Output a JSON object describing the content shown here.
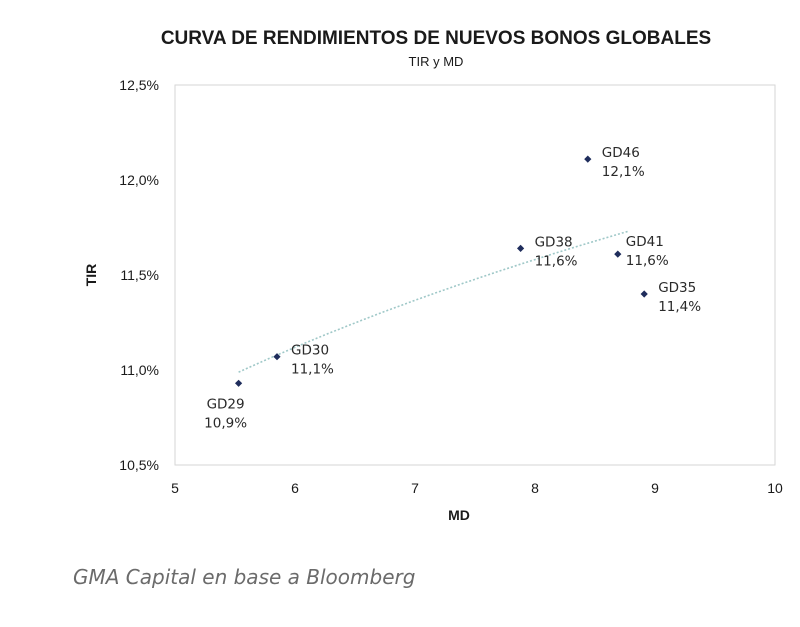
{
  "chart_data": {
    "type": "scatter",
    "title": "CURVA DE RENDIMIENTOS DE NUEVOS BONOS GLOBALES",
    "subtitle": "TIR y MD",
    "xlabel": "MD",
    "ylabel": "TIR",
    "xlim": [
      5,
      10
    ],
    "ylim": [
      10.5,
      12.5
    ],
    "x_ticks": [
      5,
      6,
      7,
      8,
      9,
      10
    ],
    "y_ticks": [
      10.5,
      11.0,
      11.5,
      12.0,
      12.5
    ],
    "y_tick_labels": [
      "10,5%",
      "11,0%",
      "11,5%",
      "12,0%",
      "12,5%"
    ],
    "grid": false,
    "points": [
      {
        "name": "GD29",
        "x": 5.53,
        "y": 10.93,
        "label": "10,9%",
        "label_pos": "below"
      },
      {
        "name": "GD30",
        "x": 5.85,
        "y": 11.07,
        "label": "11,1%",
        "label_pos": "right"
      },
      {
        "name": "GD38",
        "x": 7.88,
        "y": 11.64,
        "label": "11,6%",
        "label_pos": "right"
      },
      {
        "name": "GD46",
        "x": 8.44,
        "y": 12.11,
        "label": "12,1%",
        "label_pos": "right"
      },
      {
        "name": "GD41",
        "x": 8.69,
        "y": 11.61,
        "label": "11,6%",
        "label_pos": "right-up"
      },
      {
        "name": "GD35",
        "x": 8.91,
        "y": 11.4,
        "label": "11,4%",
        "label_pos": "right"
      }
    ],
    "trendline": {
      "type": "log",
      "from_x": 5.53,
      "to_x": 8.78
    },
    "point_color": "#1f2d5c",
    "trend_color": "#9fc8c8"
  },
  "source": "GMA Capital en base a Bloomberg"
}
